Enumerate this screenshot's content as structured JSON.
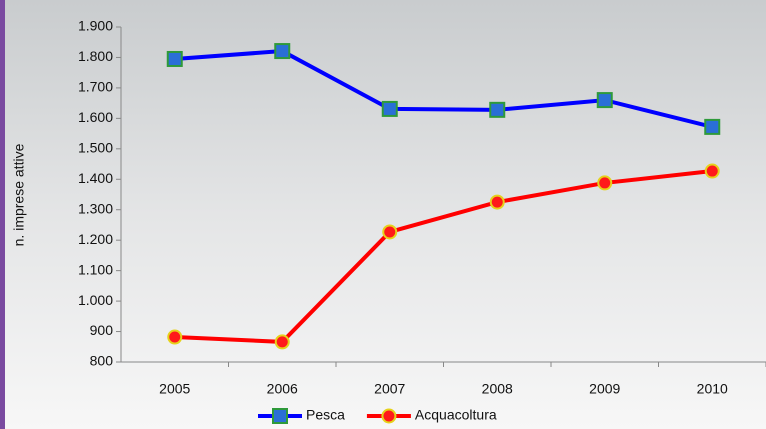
{
  "chart_data": {
    "type": "line",
    "y_label": "n. imprese attive",
    "categories": [
      "2005",
      "2006",
      "2007",
      "2008",
      "2009",
      "2010"
    ],
    "series": [
      {
        "name": "Pesca",
        "color": "#0000ff",
        "marker": "square",
        "marker_fill": "#2a6fd6",
        "marker_edge": "#2e9a3a",
        "values": [
          1795,
          1821,
          1631,
          1628,
          1660,
          1572
        ]
      },
      {
        "name": "Acquacoltura",
        "color": "#ff0000",
        "marker": "circle",
        "marker_fill": "#ff1a1a",
        "marker_edge": "#e6d21a",
        "values": [
          882,
          866,
          1227,
          1325,
          1388,
          1427
        ]
      }
    ],
    "ylim": [
      800,
      1900
    ],
    "yticks": [
      800,
      900,
      {
        "value": 1000,
        "label": "1.000"
      },
      {
        "value": 1100,
        "label": "1.100"
      },
      {
        "value": 1200,
        "label": "1.200"
      },
      {
        "value": 1300,
        "label": "1.300"
      },
      {
        "value": 1400,
        "label": "1.400"
      },
      {
        "value": 1500,
        "label": "1.500"
      },
      {
        "value": 1600,
        "label": "1.600"
      },
      {
        "value": 1700,
        "label": "1.700"
      },
      {
        "value": 1800,
        "label": "1.800"
      },
      {
        "value": 1900,
        "label": "1.900"
      }
    ],
    "legend": "bottom"
  }
}
